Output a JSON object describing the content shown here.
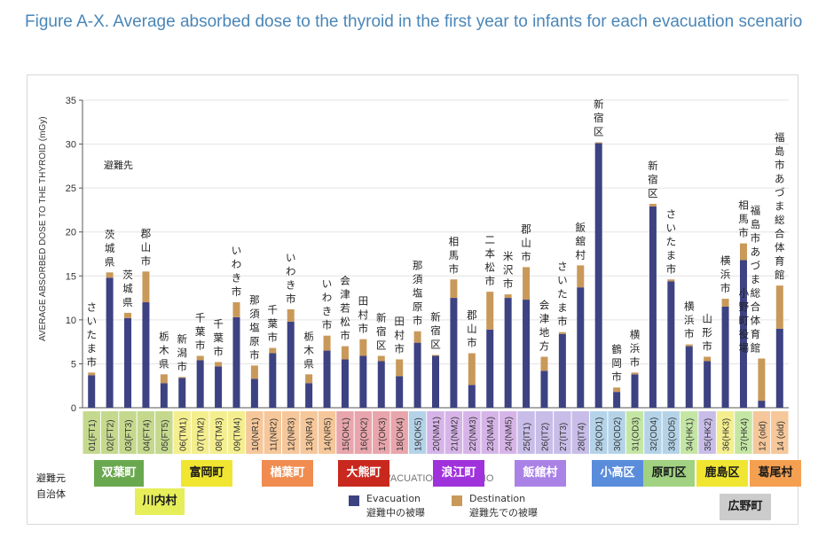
{
  "figure": {
    "title": "Figure A-X. Average absorbed dose to the thyroid in the first year to infants for each evacuation scenario"
  },
  "colors": {
    "evacuation": "#3d4282",
    "destination": "#c9995a"
  },
  "labels": {
    "destination_header": "避難先",
    "origin_header_1": "避難元",
    "origin_header_2": "自治体",
    "watermark": "EVACUATION SCENARIO"
  },
  "legend": {
    "evacuation_en": "Evacuation",
    "evacuation_jp": "避難中の被曝",
    "destination_en": "Destination",
    "destination_jp": "避難先での被曝"
  },
  "chart_data": {
    "type": "bar",
    "stacked": true,
    "ylabel": "AVERAGE ABSORBED DOSE TO THE THYROID (mGy)",
    "xlabel": "EVACUATION SCENARIO",
    "ylim": [
      0,
      35
    ],
    "yticks": [
      0,
      5,
      10,
      15,
      20,
      25,
      30,
      35
    ],
    "categories": [
      "01(FT1)",
      "02(FT2)",
      "03(FT3)",
      "04(FT4)",
      "05(FT5)",
      "06(TM1)",
      "07(TM2)",
      "08(TM3)",
      "09(TM4)",
      "10(NR1)",
      "11(NR2)",
      "12(NR3)",
      "13(NR4)",
      "14(NR5)",
      "15(OK1)",
      "16(OK2)",
      "17(OK3)",
      "18(OK4)",
      "19(OK5)",
      "20(NM1)",
      "21(NM2)",
      "22(NM3)",
      "23(NM4)",
      "24(NM5)",
      "25(IT1)",
      "26(IT2)",
      "27(IT3)",
      "28(IT4)",
      "29(OD1)",
      "30(OD2)",
      "31(OD3)",
      "32(OD4)",
      "33(OD5)",
      "34(HK1)",
      "35(HK2)",
      "36(HK3)",
      "37(HK4)",
      "12 (old)",
      "14 (old)"
    ],
    "category_colors": [
      "#c4d98d",
      "#c4d98d",
      "#c4d98d",
      "#c4d98d",
      "#c4d98d",
      "#f4ee8f",
      "#f4ee8f",
      "#f4ee8f",
      "#f4ee8f",
      "#f5c79a",
      "#f5c79a",
      "#f5c79a",
      "#f5c79a",
      "#f5c79a",
      "#e8a5ac",
      "#e8a5ac",
      "#e8a5ac",
      "#e8a5ac",
      "#b4d3e8",
      "#d6b4e8",
      "#d6b4e8",
      "#d6b4e8",
      "#d6b4e8",
      "#d6b4e8",
      "#c8bde8",
      "#c8bde8",
      "#c8bde8",
      "#c8bde8",
      "#b4d3e8",
      "#b4d3e8",
      "#c4e6a4",
      "#b4d3e8",
      "#b4d3e8",
      "#c4e6a4",
      "#c8bde8",
      "#f4ee8f",
      "#c4e6a4",
      "#f5c79a",
      "#f5c79a"
    ],
    "series": [
      {
        "name": "Evacuation",
        "values": [
          3.7,
          14.8,
          10.2,
          12.0,
          2.8,
          3.4,
          5.4,
          4.7,
          10.3,
          3.3,
          6.2,
          9.8,
          2.8,
          6.5,
          5.5,
          5.9,
          5.3,
          3.6,
          7.4,
          5.9,
          12.5,
          2.6,
          8.9,
          12.5,
          12.3,
          4.2,
          8.4,
          13.7,
          30.1,
          1.8,
          3.8,
          22.9,
          14.4,
          7.0,
          5.3,
          11.5,
          16.8,
          0.8,
          9.0
        ]
      },
      {
        "name": "Destination",
        "values": [
          0.3,
          0.6,
          0.6,
          3.5,
          1.0,
          0.1,
          0.5,
          0.5,
          1.7,
          1.5,
          0.6,
          1.4,
          1.0,
          1.7,
          1.5,
          1.9,
          0.6,
          1.9,
          1.3,
          0.1,
          2.1,
          3.6,
          4.3,
          0.4,
          3.7,
          1.6,
          0.2,
          2.5,
          0.1,
          0.5,
          0.2,
          0.3,
          0.2,
          0.2,
          0.5,
          0.9,
          1.9,
          4.8,
          4.9
        ]
      }
    ],
    "destination_labels": [
      "さいたま市",
      "茨城県",
      "茨城県",
      "郡山市",
      "栃木県",
      "新潟市",
      "千葉市",
      "千葉市",
      "いわき市",
      "那須塩原市",
      "千葉市",
      "いわき市",
      "栃木県",
      "いわき市",
      "会津若松市",
      "田村市",
      "新宿区",
      "田村市",
      "那須塩原市",
      "新宿区",
      "相馬市",
      "郡山市",
      "二本松市",
      "米沢市",
      "郡山市",
      "会津地方",
      "さいたま市",
      "飯舘村",
      "新宿区",
      "鶴岡市",
      "横浜市",
      "新宿区",
      "さいたま市",
      "横浜市",
      "山形市",
      "横浜市",
      "相馬市",
      "福島市あづま総合体育館",
      "福島市あづま総合体育館"
    ],
    "destination_label_extra": [
      "",
      "",
      "",
      "",
      "",
      "",
      "",
      "",
      "",
      "",
      "",
      "",
      "",
      "",
      "",
      "",
      "",
      "",
      "",
      "",
      "",
      "",
      "",
      "",
      "",
      "",
      "",
      "",
      "",
      "",
      "",
      "",
      "",
      "",
      "",
      "",
      "",
      "小野町役場",
      ""
    ]
  },
  "municipalities": [
    {
      "name": "双葉町",
      "bg": "#6aa84f",
      "fg": "#ffffff"
    },
    {
      "name": "川内村",
      "bg": "#e6ee5a",
      "fg": "#1a1a1a"
    },
    {
      "name": "富岡町",
      "bg": "#f0e632",
      "fg": "#1a1a1a"
    },
    {
      "name": "楢葉町",
      "bg": "#f08c50",
      "fg": "#ffffff"
    },
    {
      "name": "大熊町",
      "bg": "#c8281e",
      "fg": "#ffffff"
    },
    {
      "name": "浪江町",
      "bg": "#a032dc",
      "fg": "#ffffff"
    },
    {
      "name": "飯舘村",
      "bg": "#aa82e6",
      "fg": "#ffffff"
    },
    {
      "name": "小高区",
      "bg": "#5a8cdc",
      "fg": "#ffffff"
    },
    {
      "name": "原町区",
      "bg": "#a0d282",
      "fg": "#1a1a1a"
    },
    {
      "name": "鹿島区",
      "bg": "#f0e632",
      "fg": "#1a1a1a"
    },
    {
      "name": "葛尾村",
      "bg": "#f5a050",
      "fg": "#1a1a1a"
    },
    {
      "name": "広野町",
      "bg": "#cccccc",
      "fg": "#1a1a1a"
    }
  ]
}
